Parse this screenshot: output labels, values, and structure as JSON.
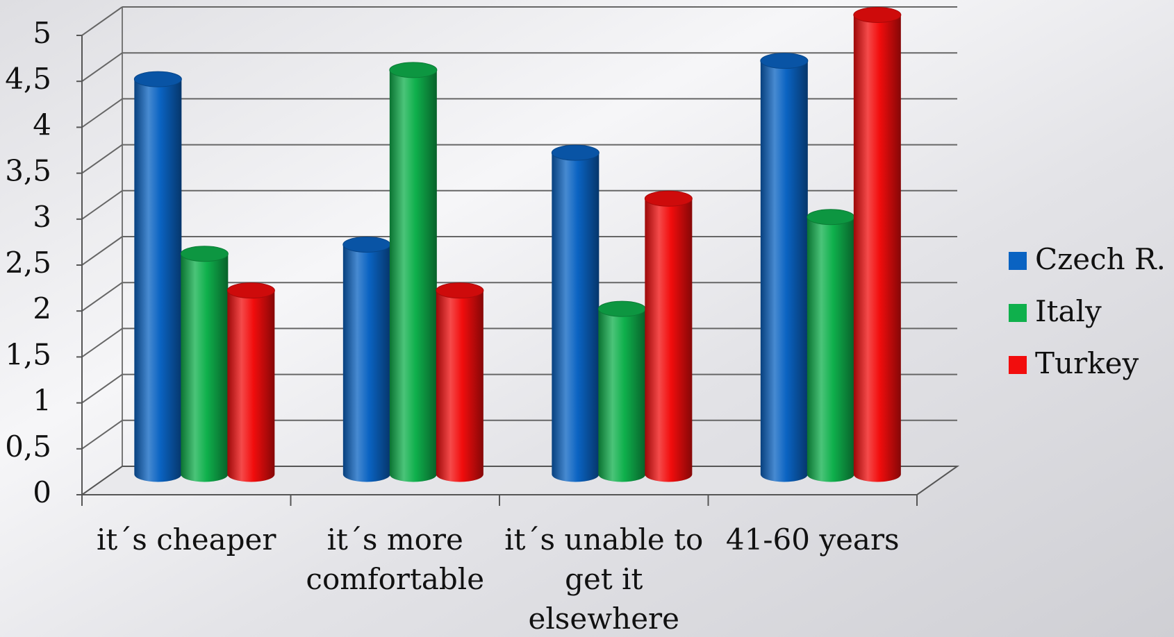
{
  "chart_data": {
    "type": "bar",
    "categories": [
      [
        "it´s cheaper"
      ],
      [
        "it´s more",
        "comfortable"
      ],
      [
        "it´s unable to",
        "get it",
        "elsewhere"
      ],
      [
        "41-60 years"
      ]
    ],
    "series": [
      {
        "name": "Czech R.",
        "color": "#0a63c2",
        "values": [
          4.3,
          2.5,
          3.5,
          4.5
        ]
      },
      {
        "name": "Italy",
        "color": "#0fb04c",
        "values": [
          2.4,
          4.4,
          1.8,
          2.8
        ]
      },
      {
        "name": "Turkey",
        "color": "#f20d0d",
        "values": [
          2.0,
          2.0,
          3.0,
          5.0
        ]
      }
    ],
    "yticks": [
      "0",
      "0,5",
      "1",
      "1,5",
      "2",
      "2,5",
      "3",
      "3,5",
      "4",
      "4,5",
      "5"
    ],
    "ylim": [
      0,
      5
    ],
    "title": "",
    "xlabel": "",
    "ylabel": "",
    "grid": true,
    "legend": "right",
    "style": "3d-cylinder"
  }
}
